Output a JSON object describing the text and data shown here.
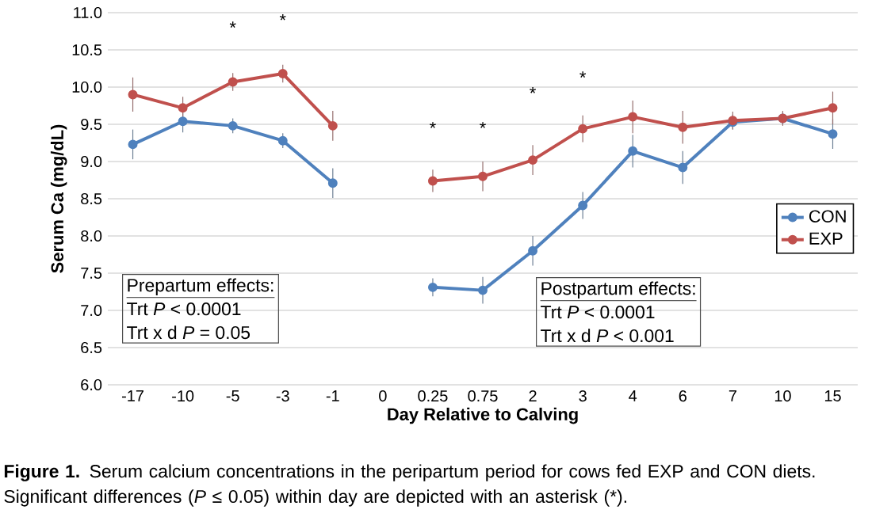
{
  "chart_data": {
    "type": "line",
    "xlabel": "Day Relative to Calving",
    "ylabel": "Serum Ca (mg/dL)",
    "categories": [
      "-17",
      "-10",
      "-5",
      "-3",
      "-1",
      "0",
      "0.25",
      "0.75",
      "2",
      "3",
      "4",
      "6",
      "7",
      "10",
      "15"
    ],
    "series": [
      {
        "name": "CON",
        "color": "#4f81bd",
        "values": [
          9.23,
          9.54,
          9.48,
          9.28,
          8.71,
          null,
          7.31,
          7.27,
          7.8,
          8.41,
          9.14,
          8.92,
          9.53,
          9.58,
          9.37
        ],
        "errors": [
          0.2,
          0.15,
          0.1,
          0.1,
          0.2,
          null,
          0.12,
          0.18,
          0.2,
          0.18,
          0.22,
          0.22,
          0.1,
          0.08,
          0.2
        ]
      },
      {
        "name": "EXP",
        "color": "#c0504d",
        "values": [
          9.9,
          9.72,
          10.07,
          10.18,
          9.48,
          null,
          8.74,
          8.8,
          9.02,
          9.44,
          9.6,
          9.46,
          9.55,
          9.58,
          9.72
        ],
        "errors": [
          0.23,
          0.15,
          0.12,
          0.12,
          0.2,
          null,
          0.15,
          0.2,
          0.2,
          0.18,
          0.22,
          0.22,
          0.12,
          0.1,
          0.22
        ]
      }
    ],
    "ylim": [
      6,
      11
    ],
    "yticks": [
      {
        "value": 6,
        "label": "6.0"
      },
      {
        "value": 6.5,
        "label": "6.5"
      },
      {
        "value": 7,
        "label": "7.0"
      },
      {
        "value": 7.5,
        "label": "7.5"
      },
      {
        "value": 8,
        "label": "8.0"
      },
      {
        "value": 8.5,
        "label": "8.5"
      },
      {
        "value": 9,
        "label": "9.0"
      },
      {
        "value": 9.5,
        "label": "9.5"
      },
      {
        "value": 10,
        "label": "10.0"
      },
      {
        "value": 10.5,
        "label": "10.5"
      },
      {
        "value": 11,
        "label": "11.0"
      }
    ],
    "grid": "y",
    "legend": "right",
    "marker": "circle",
    "line_style": "solid",
    "annotations": [
      "*",
      "*",
      "*",
      "*",
      "*",
      "*",
      "Prepartum effects:",
      "Trt *P* < 0.0001",
      "Trt x d *P* = 0.05",
      "Postpartum effects:",
      "Trt *P* < 0.0001",
      "Trt x d *P* < 0.001",
      "**Figure 1.** Serum calcium concentrations in the peripartum period for cows fed EXP and CON diets. Significant differences (*P* ≤ 0.05) within day are depicted with an asterisk (*)."
    ]
  }
}
